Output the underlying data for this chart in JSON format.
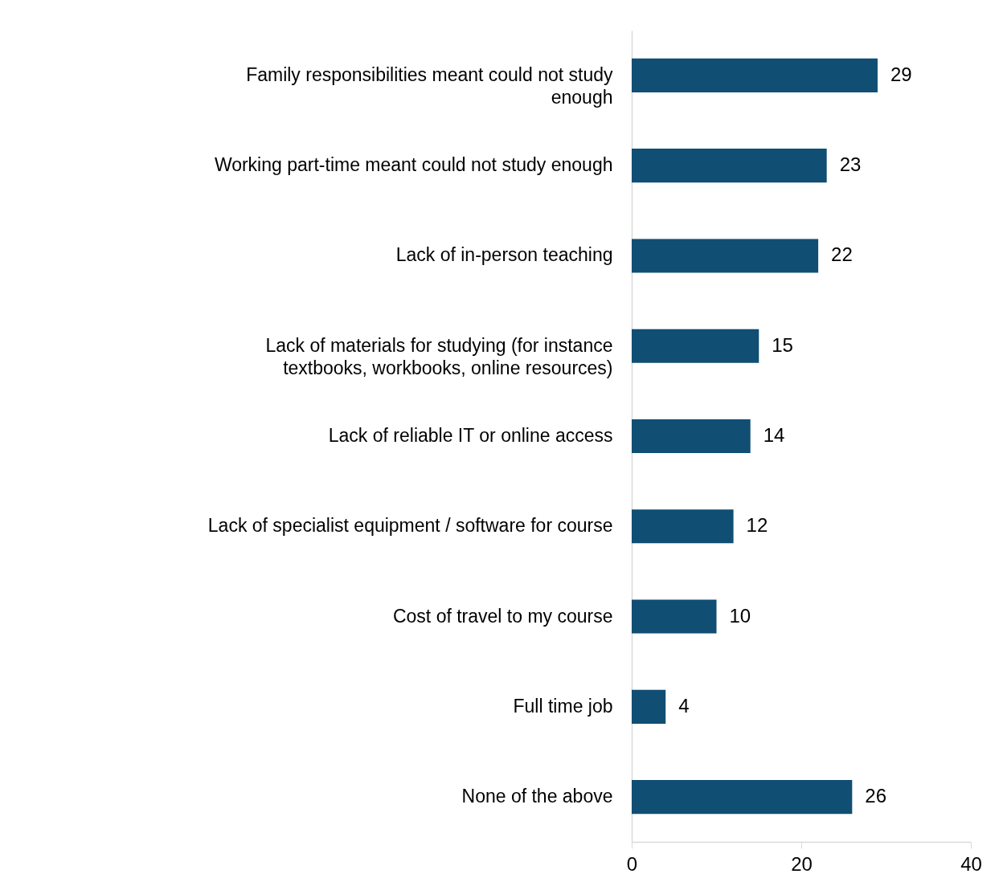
{
  "chart_data": {
    "type": "bar",
    "orientation": "horizontal",
    "categories": [
      "Family responsibilities meant could not study enough",
      "Working part-time meant could not study enough",
      "Lack of in-person teaching",
      "Lack of materials for studying (for instance textbooks, workbooks, online resources)",
      "Lack of reliable IT or online access",
      "Lack of specialist equipment / software for course",
      "Cost of travel to my course",
      "Full time job",
      "None of the above"
    ],
    "values": [
      29,
      23,
      22,
      15,
      14,
      12,
      10,
      4,
      26
    ],
    "color": "#114e73",
    "xlim": [
      0,
      40
    ],
    "xticks": [
      0,
      20,
      40
    ],
    "data_labels": true,
    "grid": false
  }
}
